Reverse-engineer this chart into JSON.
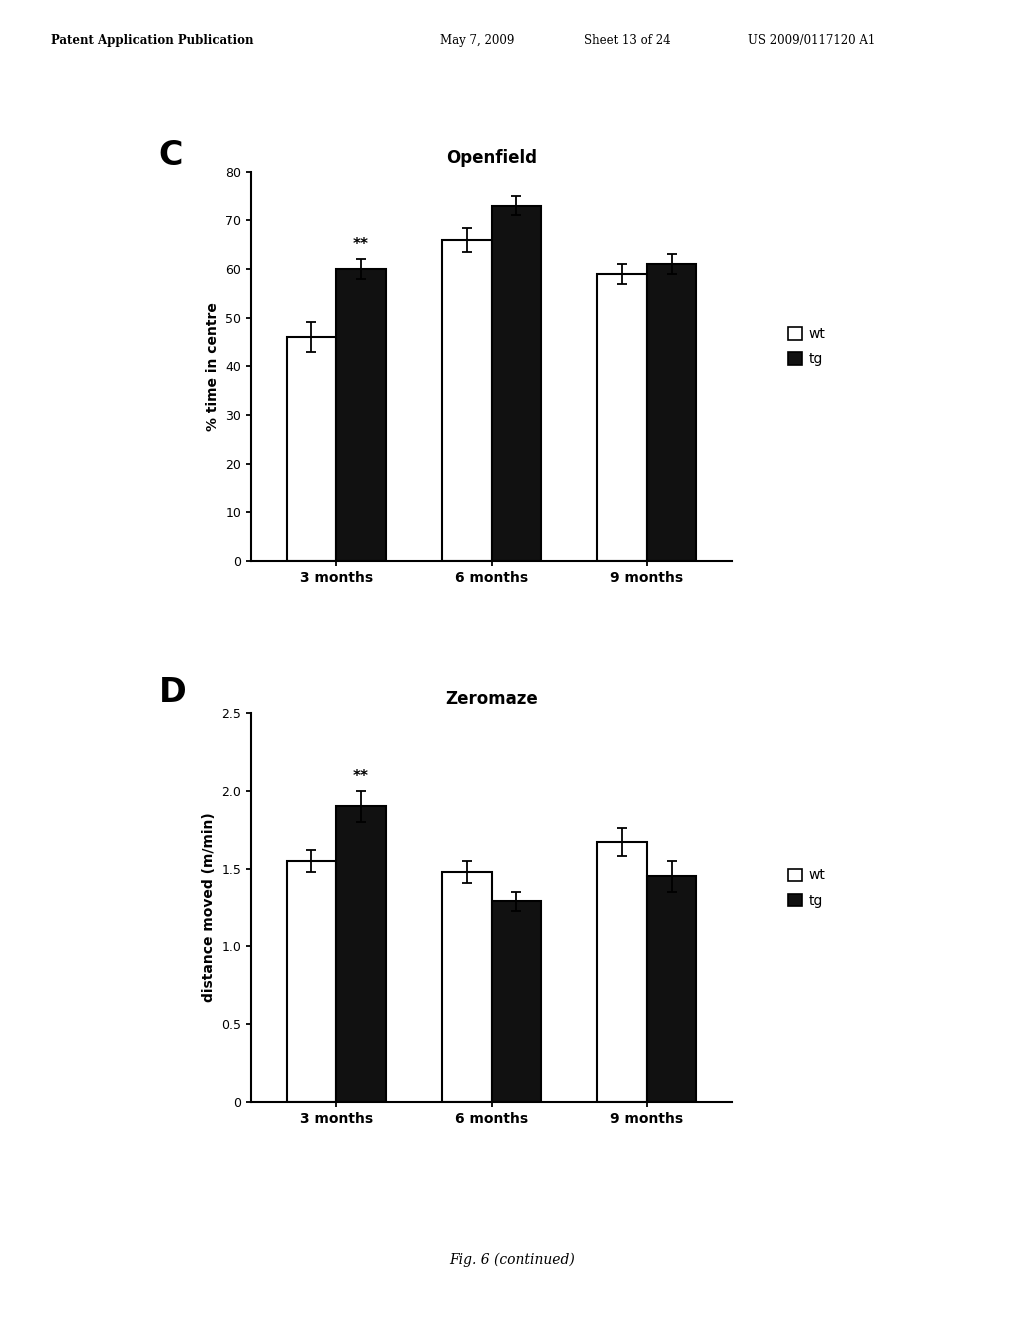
{
  "panel_C": {
    "title": "Openfield",
    "ylabel": "% time in centre",
    "categories": [
      "3 months",
      "6 months",
      "9 months"
    ],
    "wt_values": [
      46,
      66,
      59
    ],
    "tg_values": [
      60,
      73,
      61
    ],
    "wt_errors": [
      3,
      2.5,
      2
    ],
    "tg_errors": [
      2,
      2,
      2
    ],
    "ylim": [
      0,
      80
    ],
    "yticks": [
      0,
      10,
      20,
      30,
      40,
      50,
      60,
      70,
      80
    ],
    "significance_bar": "tg",
    "significance_idx": 0,
    "label": "C"
  },
  "panel_D": {
    "title": "Zeromaze",
    "ylabel": "distance moved (m/min)",
    "categories": [
      "3 months",
      "6 months",
      "9 months"
    ],
    "wt_values": [
      1.55,
      1.48,
      1.67
    ],
    "tg_values": [
      1.9,
      1.29,
      1.45
    ],
    "wt_errors": [
      0.07,
      0.07,
      0.09
    ],
    "tg_errors": [
      0.1,
      0.06,
      0.1
    ],
    "ylim": [
      0,
      2.5
    ],
    "yticks": [
      0,
      0.5,
      1.0,
      1.5,
      2.0,
      2.5
    ],
    "significance_bar": "tg",
    "significance_idx": 0,
    "label": "D"
  },
  "wt_color": "#ffffff",
  "tg_color": "#111111",
  "bar_edge_color": "#000000",
  "bar_width": 0.32,
  "header_text": "Patent Application Publication    May 7, 2009   Sheet 13 of 24    US 2009/0117120 A1",
  "footer_text": "Fig. 6 (continued)",
  "background_color": "#ffffff",
  "legend_labels": [
    "wt",
    "tg"
  ]
}
